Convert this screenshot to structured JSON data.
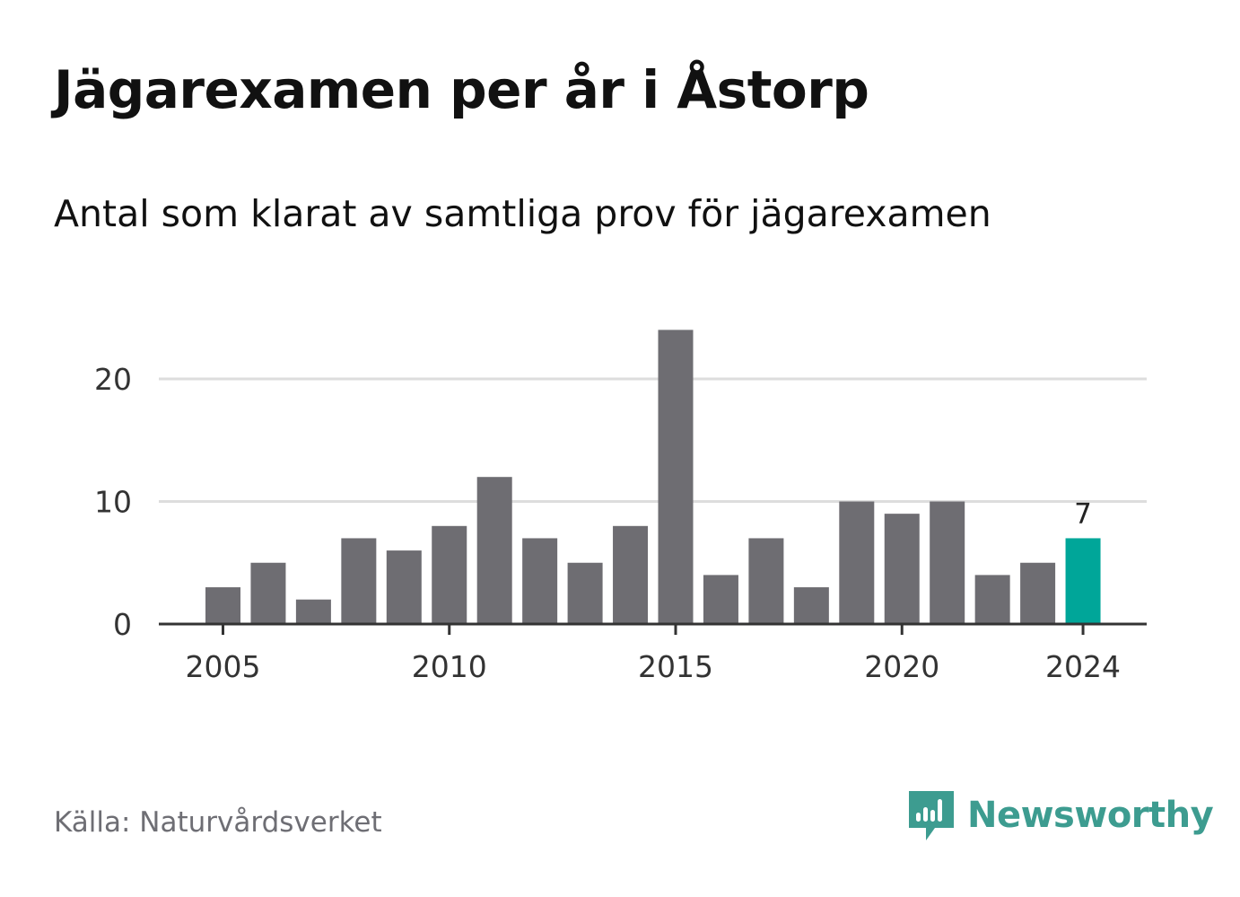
{
  "title": "Jägarexamen per år i Åstorp",
  "subtitle": "Antal som klarat av samtliga prov för jägarexamen",
  "source": "Källa: Naturvårdsverket",
  "brand": {
    "name": "Newsworthy",
    "icon": "newsworthy-logo-icon"
  },
  "colors": {
    "bar": "#6e6d72",
    "highlight": "#00a699",
    "grid": "#dddddd",
    "axis": "#333333",
    "brand": "#3d9c90"
  },
  "chart_data": {
    "type": "bar",
    "title": "Jägarexamen per år i Åstorp",
    "subtitle": "Antal som klarat av samtliga prov för jägarexamen",
    "categories": [
      2005,
      2006,
      2007,
      2008,
      2009,
      2010,
      2011,
      2012,
      2013,
      2014,
      2015,
      2016,
      2017,
      2018,
      2019,
      2020,
      2021,
      2022,
      2023,
      2024
    ],
    "values": [
      3,
      5,
      2,
      7,
      6,
      8,
      12,
      7,
      5,
      8,
      24,
      4,
      7,
      3,
      10,
      9,
      10,
      4,
      5,
      7
    ],
    "highlight": {
      "category": 2024,
      "label": "7"
    },
    "xticks": [
      "2005",
      "2010",
      "2015",
      "2020",
      "2024"
    ],
    "yticks": [
      "0",
      "10",
      "20"
    ],
    "ylim": [
      0,
      24
    ],
    "xlabel": "",
    "ylabel": "",
    "grid": true
  }
}
